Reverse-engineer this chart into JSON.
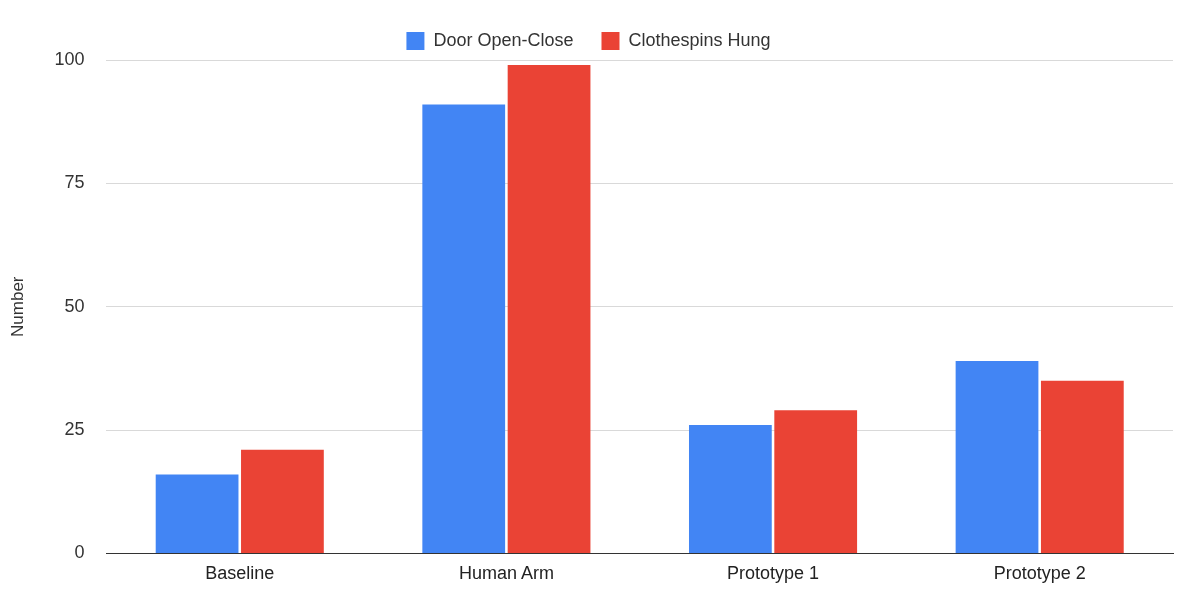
{
  "chart_data": {
    "type": "bar",
    "ylabel": "Number",
    "categories": [
      "Baseline",
      "Human Arm",
      "Prototype 1",
      "Prototype 2"
    ],
    "series": [
      {
        "name": "Door Open-Close",
        "color": "#4285f4",
        "values": [
          16,
          91,
          26,
          39
        ]
      },
      {
        "name": "Clothespins Hung",
        "color": "#ea4335",
        "values": [
          21,
          99,
          29,
          35
        ]
      }
    ],
    "ylim": [
      0,
      100
    ],
    "yticks": [
      0,
      25,
      50,
      75,
      100
    ],
    "grid": "y",
    "legend": "top"
  }
}
